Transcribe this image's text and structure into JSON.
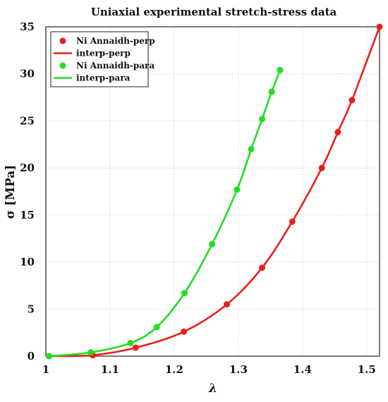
{
  "chart_data": {
    "type": "line",
    "title": "Uniaxial experimental stretch-stress data",
    "xlabel": "λ",
    "ylabel": "σ [MPa]",
    "xlim": [
      1.0,
      1.52
    ],
    "ylim": [
      0,
      35
    ],
    "xticks": [
      1,
      1.1,
      1.2,
      1.3,
      1.4,
      1.5
    ],
    "yticks": [
      0,
      5,
      10,
      15,
      20,
      25,
      30,
      35
    ],
    "grid": true,
    "legend_position": "top-left",
    "colors": {
      "perp": "#e8201c",
      "para": "#22dd22"
    },
    "series": [
      {
        "name": "Ni Annaidh-perp",
        "kind": "markers",
        "color": "#e8201c",
        "points": [
          [
            1.005,
            0.0
          ],
          [
            1.073,
            0.1
          ],
          [
            1.14,
            0.9
          ],
          [
            1.215,
            2.6
          ],
          [
            1.282,
            5.5
          ],
          [
            1.337,
            9.4
          ],
          [
            1.384,
            14.3
          ],
          [
            1.43,
            20.0
          ],
          [
            1.455,
            23.8
          ],
          [
            1.477,
            27.2
          ],
          [
            1.52,
            35.0
          ]
        ]
      },
      {
        "name": "interp-perp",
        "kind": "line",
        "color": "#e8201c",
        "points": [
          [
            1.005,
            0.0
          ],
          [
            1.073,
            0.1
          ],
          [
            1.14,
            0.9
          ],
          [
            1.215,
            2.6
          ],
          [
            1.282,
            5.5
          ],
          [
            1.337,
            9.4
          ],
          [
            1.384,
            14.3
          ],
          [
            1.43,
            20.0
          ],
          [
            1.455,
            23.8
          ],
          [
            1.477,
            27.2
          ],
          [
            1.52,
            35.0
          ]
        ]
      },
      {
        "name": "Ni Annaidh-para",
        "kind": "markers",
        "color": "#22dd22",
        "points": [
          [
            1.005,
            0.0
          ],
          [
            1.07,
            0.4
          ],
          [
            1.132,
            1.4
          ],
          [
            1.173,
            3.1
          ],
          [
            1.216,
            6.7
          ],
          [
            1.259,
            11.9
          ],
          [
            1.298,
            17.7
          ],
          [
            1.32,
            22.0
          ],
          [
            1.337,
            25.2
          ],
          [
            1.352,
            28.1
          ],
          [
            1.365,
            30.4
          ]
        ]
      },
      {
        "name": "interp-para",
        "kind": "line",
        "color": "#22dd22",
        "points": [
          [
            1.005,
            0.0
          ],
          [
            1.07,
            0.4
          ],
          [
            1.132,
            1.4
          ],
          [
            1.173,
            3.1
          ],
          [
            1.216,
            6.7
          ],
          [
            1.259,
            11.9
          ],
          [
            1.298,
            17.7
          ],
          [
            1.32,
            22.0
          ],
          [
            1.337,
            25.2
          ],
          [
            1.352,
            28.1
          ],
          [
            1.365,
            30.4
          ]
        ]
      }
    ]
  }
}
